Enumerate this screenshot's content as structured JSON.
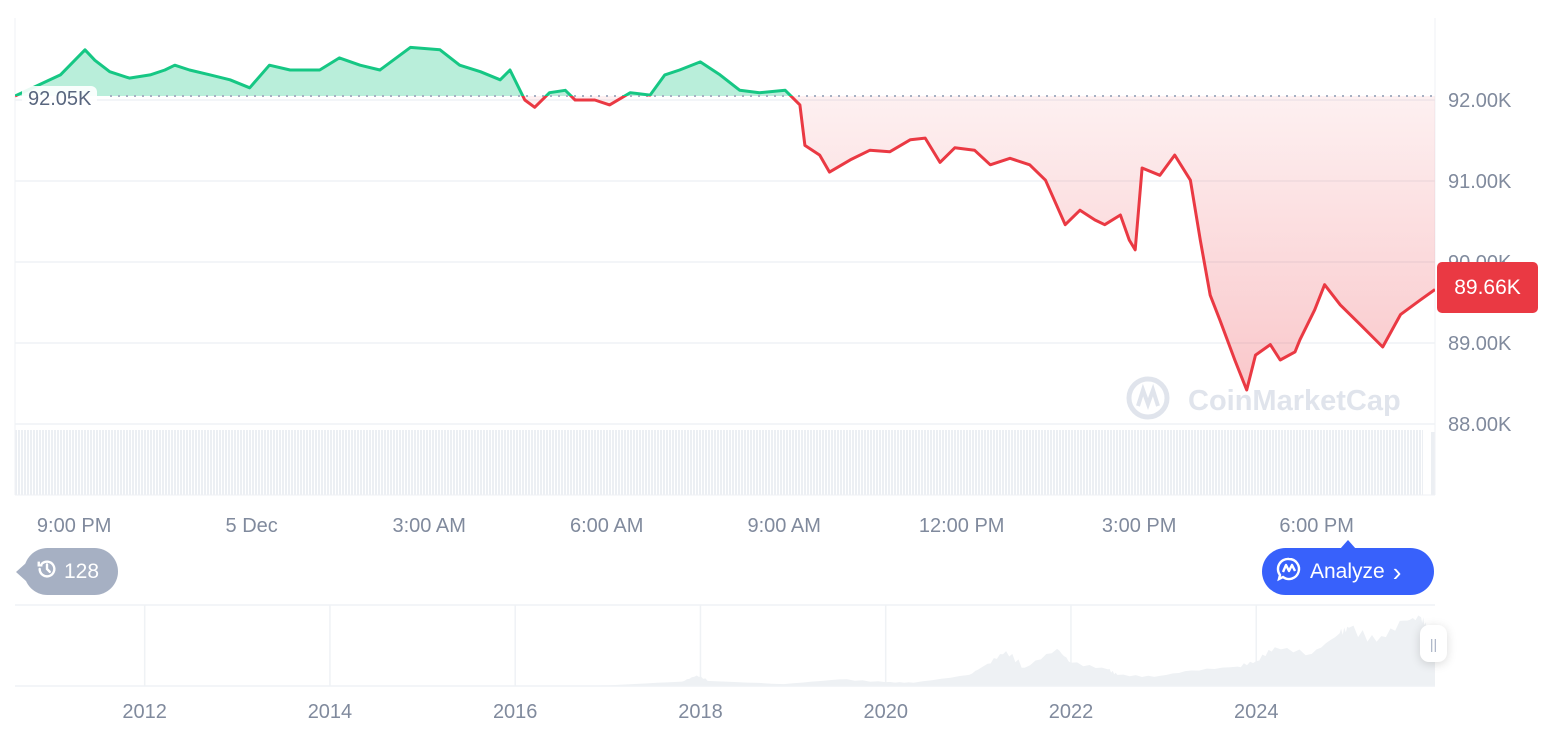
{
  "chart_data": {
    "type": "line",
    "title": "",
    "xlabel": "",
    "ylabel": "",
    "baseline_price": 92050,
    "baseline_label": "92.05K",
    "current_price_label": "89.66K",
    "current_price": 89660,
    "ylim": [
      87500,
      93000
    ],
    "y_ticks": [
      "92.00K",
      "91.00K",
      "90.00K",
      "89.00K",
      "88.00K"
    ],
    "y_tick_values": [
      92000,
      91000,
      90000,
      89000,
      88000
    ],
    "x_ticks": [
      "9:00 PM",
      "5 Dec",
      "3:00 AM",
      "6:00 AM",
      "9:00 AM",
      "12:00 PM",
      "3:00 PM",
      "6:00 PM"
    ],
    "x_tick_times": [
      "4 Dec 21:00",
      "5 Dec 00:00",
      "5 Dec 03:00",
      "5 Dec 06:00",
      "5 Dec 09:00",
      "5 Dec 12:00",
      "5 Dec 15:00",
      "5 Dec 18:00"
    ],
    "x_range": [
      "4 Dec 20:00",
      "5 Dec 20:00"
    ],
    "grid": "horizontal",
    "colors": {
      "up": "#16c784",
      "down": "#ea3943",
      "accent": "#3861fb"
    },
    "points": [
      [
        "4 Dec 20:00",
        92050
      ],
      [
        "4 Dec 20:46",
        92310
      ],
      [
        "4 Dec 21:11",
        92620
      ],
      [
        "4 Dec 21:21",
        92490
      ],
      [
        "4 Dec 21:36",
        92350
      ],
      [
        "4 Dec 21:56",
        92270
      ],
      [
        "4 Dec 22:17",
        92310
      ],
      [
        "4 Dec 22:32",
        92370
      ],
      [
        "4 Dec 22:42",
        92430
      ],
      [
        "4 Dec 22:57",
        92370
      ],
      [
        "4 Dec 23:18",
        92310
      ],
      [
        "4 Dec 23:38",
        92250
      ],
      [
        "4 Dec 23:58",
        92150
      ],
      [
        "5 Dec 00:18",
        92430
      ],
      [
        "5 Dec 00:39",
        92370
      ],
      [
        "5 Dec 01:09",
        92370
      ],
      [
        "5 Dec 01:29",
        92520
      ],
      [
        "5 Dec 01:50",
        92430
      ],
      [
        "5 Dec 02:10",
        92370
      ],
      [
        "5 Dec 02:41",
        92650
      ],
      [
        "5 Dec 03:11",
        92620
      ],
      [
        "5 Dec 03:31",
        92430
      ],
      [
        "5 Dec 03:52",
        92350
      ],
      [
        "5 Dec 04:12",
        92250
      ],
      [
        "5 Dec 04:22",
        92370
      ],
      [
        "5 Dec 04:37",
        92000
      ],
      [
        "5 Dec 04:47",
        91910
      ],
      [
        "5 Dec 05:02",
        92090
      ],
      [
        "5 Dec 05:18",
        92120
      ],
      [
        "5 Dec 05:28",
        92000
      ],
      [
        "5 Dec 05:48",
        92000
      ],
      [
        "5 Dec 06:03",
        91940
      ],
      [
        "5 Dec 06:24",
        92090
      ],
      [
        "5 Dec 06:44",
        92060
      ],
      [
        "5 Dec 06:59",
        92310
      ],
      [
        "5 Dec 07:14",
        92370
      ],
      [
        "5 Dec 07:35",
        92470
      ],
      [
        "5 Dec 07:55",
        92310
      ],
      [
        "5 Dec 08:15",
        92120
      ],
      [
        "5 Dec 08:35",
        92090
      ],
      [
        "5 Dec 09:01",
        92120
      ],
      [
        "5 Dec 09:16",
        91940
      ],
      [
        "5 Dec 09:21",
        91440
      ],
      [
        "5 Dec 09:36",
        91320
      ],
      [
        "5 Dec 09:46",
        91110
      ],
      [
        "5 Dec 10:07",
        91260
      ],
      [
        "5 Dec 10:27",
        91380
      ],
      [
        "5 Dec 10:47",
        91360
      ],
      [
        "5 Dec 11:08",
        91510
      ],
      [
        "5 Dec 11:23",
        91530
      ],
      [
        "5 Dec 11:38",
        91230
      ],
      [
        "5 Dec 11:53",
        91410
      ],
      [
        "5 Dec 12:13",
        91380
      ],
      [
        "5 Dec 12:29",
        91200
      ],
      [
        "5 Dec 12:49",
        91280
      ],
      [
        "5 Dec 13:09",
        91200
      ],
      [
        "5 Dec 13:25",
        91010
      ],
      [
        "5 Dec 13:45",
        90460
      ],
      [
        "5 Dec 14:00",
        90640
      ],
      [
        "5 Dec 14:15",
        90520
      ],
      [
        "5 Dec 14:25",
        90460
      ],
      [
        "5 Dec 14:41",
        90580
      ],
      [
        "5 Dec 14:50",
        90270
      ],
      [
        "5 Dec 14:56",
        90150
      ],
      [
        "5 Dec 15:03",
        91160
      ],
      [
        "5 Dec 15:21",
        91070
      ],
      [
        "5 Dec 15:36",
        91320
      ],
      [
        "5 Dec 15:52",
        91010
      ],
      [
        "5 Dec 16:02",
        90270
      ],
      [
        "5 Dec 16:12",
        89590
      ],
      [
        "5 Dec 16:22",
        89280
      ],
      [
        "5 Dec 16:37",
        88790
      ],
      [
        "5 Dec 16:49",
        88420
      ],
      [
        "5 Dec 16:58",
        88850
      ],
      [
        "5 Dec 17:13",
        88980
      ],
      [
        "5 Dec 17:23",
        88790
      ],
      [
        "5 Dec 17:38",
        88890
      ],
      [
        "5 Dec 17:43",
        89040
      ],
      [
        "5 Dec 17:58",
        89410
      ],
      [
        "5 Dec 18:08",
        89720
      ],
      [
        "5 Dec 18:24",
        89470
      ],
      [
        "5 Dec 18:44",
        89230
      ],
      [
        "5 Dec 19:07",
        88950
      ],
      [
        "5 Dec 19:25",
        89350
      ],
      [
        "5 Dec 19:45",
        89530
      ],
      [
        "5 Dec 20:00",
        89660
      ]
    ],
    "navigator": {
      "type": "area",
      "x_ticks": [
        "2012",
        "2014",
        "2016",
        "2018",
        "2020",
        "2022",
        "2024"
      ],
      "x_range": [
        2010.6,
        2025.93
      ],
      "points": [
        [
          2010.6,
          0
        ],
        [
          2013.0,
          100
        ],
        [
          2014.0,
          800
        ],
        [
          2015.0,
          300
        ],
        [
          2016.0,
          400
        ],
        [
          2017.0,
          1000
        ],
        [
          2017.8,
          8000
        ],
        [
          2017.96,
          19000
        ],
        [
          2018.1,
          9000
        ],
        [
          2018.9,
          3500
        ],
        [
          2019.5,
          12000
        ],
        [
          2020.0,
          7000
        ],
        [
          2020.3,
          6000
        ],
        [
          2020.9,
          20000
        ],
        [
          2021.1,
          40000
        ],
        [
          2021.3,
          63000
        ],
        [
          2021.5,
          33000
        ],
        [
          2021.85,
          67000
        ],
        [
          2022.0,
          42000
        ],
        [
          2022.4,
          30000
        ],
        [
          2022.5,
          20000
        ],
        [
          2022.9,
          16500
        ],
        [
          2023.3,
          28000
        ],
        [
          2023.8,
          35000
        ],
        [
          2024.0,
          45000
        ],
        [
          2024.2,
          70000
        ],
        [
          2024.6,
          58000
        ],
        [
          2024.9,
          95000
        ],
        [
          2025.0,
          105000
        ],
        [
          2025.3,
          80000
        ],
        [
          2025.6,
          118000
        ],
        [
          2025.78,
          124000
        ],
        [
          2025.85,
          105000
        ],
        [
          2025.93,
          90000
        ]
      ]
    }
  },
  "watermark": "CoinMarketCap",
  "history_badge": {
    "icon": "history-icon",
    "count": "128"
  },
  "analyze_button": {
    "icon": "cmc-chat-icon",
    "label": "Analyze",
    "chevron": "›"
  },
  "navigator_handle": {
    "icon": "grip-icon",
    "glyph": "||"
  }
}
